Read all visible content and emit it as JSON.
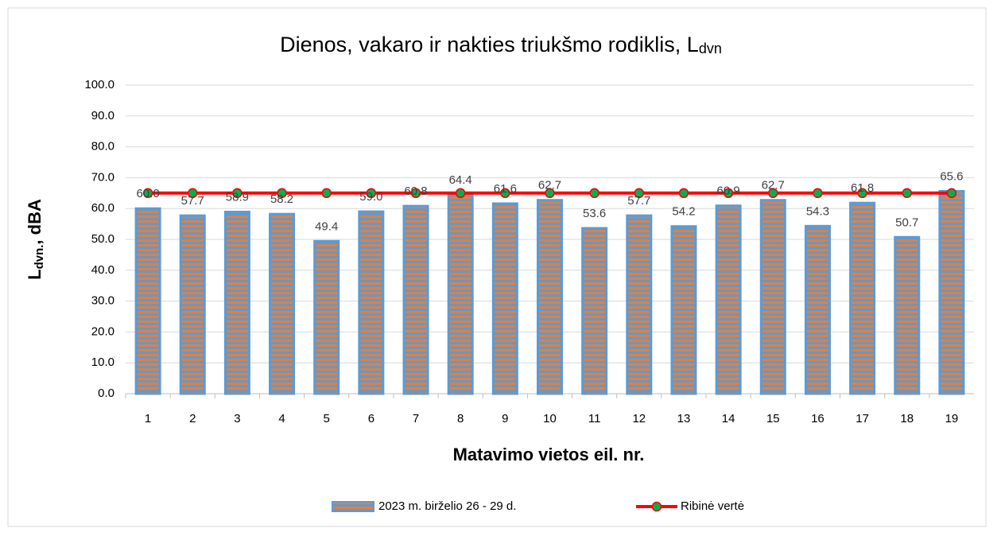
{
  "chart_data": {
    "type": "bar",
    "title": "Dienos, vakaro ir nakties triukšmo rodiklis, L",
    "title_subscript": "dvn",
    "x_label": "Matavimo vietos eil. nr.",
    "y_label": [
      "L",
      "dvn.",
      ", dBA"
    ],
    "categories": [
      "1",
      "2",
      "3",
      "4",
      "5",
      "6",
      "7",
      "8",
      "9",
      "10",
      "11",
      "12",
      "13",
      "14",
      "15",
      "16",
      "17",
      "18",
      "19"
    ],
    "series": [
      {
        "name": "2023 m. birželio 26 - 29 d.",
        "type": "bar",
        "color": "#5b9bd5",
        "stripe_color": "#ed7d31",
        "values": [
          60.0,
          57.7,
          58.9,
          58.2,
          49.4,
          59.0,
          60.8,
          64.4,
          61.6,
          62.7,
          53.6,
          57.7,
          54.2,
          60.9,
          62.7,
          54.3,
          61.8,
          50.7,
          65.6
        ],
        "value_labels": [
          "60.0",
          "57.7",
          "58.9",
          "58.2",
          "49.4",
          "59.0",
          "60.8",
          "64.4",
          "61.6",
          "62.7",
          "53.6",
          "57.7",
          "54.2",
          "60.9",
          "62.7",
          "54.3",
          "61.8",
          "50.7",
          "65.6"
        ]
      },
      {
        "name": "Ribinė vertė",
        "type": "line",
        "color": "#ff0000",
        "marker_color": "#00b050",
        "values": [
          65,
          65,
          65,
          65,
          65,
          65,
          65,
          65,
          65,
          65,
          65,
          65,
          65,
          65,
          65,
          65,
          65,
          65,
          65
        ]
      }
    ],
    "ylim": [
      0,
      100
    ],
    "yticks": [
      {
        "value": 0,
        "label": "0.0"
      },
      {
        "value": 10,
        "label": "10.0"
      },
      {
        "value": 20,
        "label": "20.0"
      },
      {
        "value": 30,
        "label": "30.0"
      },
      {
        "value": 40,
        "label": "40.0"
      },
      {
        "value": 50,
        "label": "50.0"
      },
      {
        "value": 60,
        "label": "60.0"
      },
      {
        "value": 70,
        "label": "70.0"
      },
      {
        "value": 80,
        "label": "80.0"
      },
      {
        "value": 90,
        "label": "90.0"
      },
      {
        "value": 100,
        "label": "100.0"
      }
    ],
    "grid": true
  }
}
